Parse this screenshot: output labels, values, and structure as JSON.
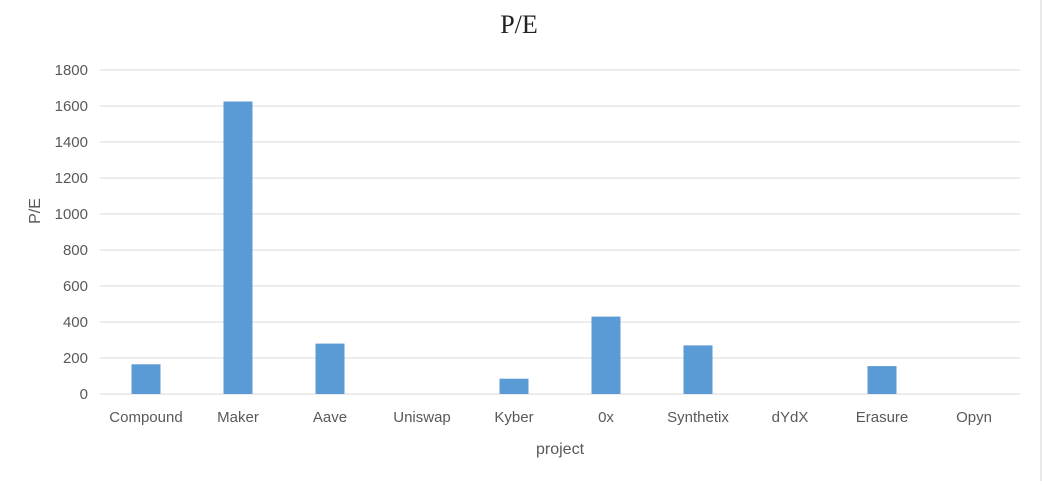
{
  "chart_data": {
    "type": "bar",
    "title": "P/E",
    "xlabel": "project",
    "ylabel": "P/E",
    "categories": [
      "Compound",
      "Maker",
      "Aave",
      "Uniswap",
      "Kyber",
      "0x",
      "Synthetix",
      "dYdX",
      "Erasure",
      "Opyn"
    ],
    "values": [
      165,
      1625,
      280,
      0,
      85,
      430,
      270,
      0,
      155,
      0
    ],
    "ylim": [
      0,
      1800
    ],
    "yticks": [
      0,
      200,
      400,
      600,
      800,
      1000,
      1200,
      1400,
      1600,
      1800
    ],
    "grid": true,
    "legend": "none",
    "colors": {
      "bar": "#5b9bd5",
      "grid": "#d9d9d9",
      "text": "#595959"
    }
  }
}
